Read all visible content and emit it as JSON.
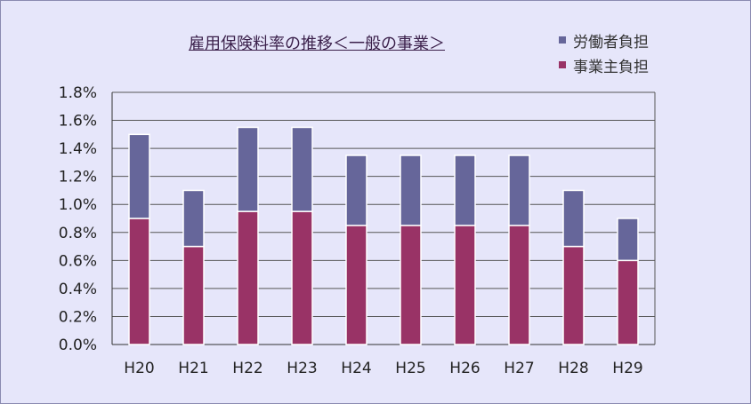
{
  "colors": {
    "worker": "#66669a",
    "employer": "#993366",
    "background": "#e6e6fa",
    "grid": "#555555"
  },
  "chart_data": {
    "type": "bar",
    "stacked": true,
    "title": "雇用保険料率の推移＜一般の事業＞",
    "categories": [
      "H20",
      "H21",
      "H22",
      "H23",
      "H24",
      "H25",
      "H26",
      "H27",
      "H28",
      "H29"
    ],
    "series": [
      {
        "name": "事業主負担",
        "values": [
          0.9,
          0.7,
          0.95,
          0.95,
          0.85,
          0.85,
          0.85,
          0.85,
          0.7,
          0.6
        ]
      },
      {
        "name": "労働者負担",
        "values": [
          0.6,
          0.4,
          0.6,
          0.6,
          0.5,
          0.5,
          0.5,
          0.5,
          0.4,
          0.3
        ]
      }
    ],
    "ylim": [
      0,
      1.8
    ],
    "yticks": [
      "0.0%",
      "0.2%",
      "0.4%",
      "0.6%",
      "0.8%",
      "1.0%",
      "1.2%",
      "1.4%",
      "1.6%",
      "1.8%"
    ],
    "grid": true,
    "legend_position": "top-right"
  }
}
